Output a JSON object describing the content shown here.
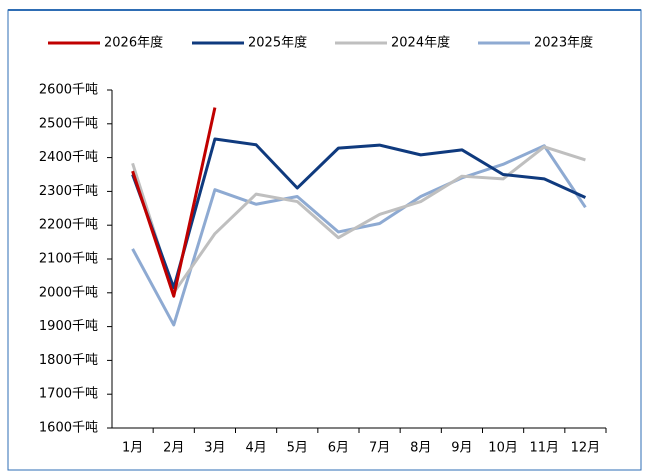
{
  "chart_data": {
    "type": "line",
    "categories": [
      "1月",
      "2月",
      "3月",
      "4月",
      "5月",
      "6月",
      "7月",
      "8月",
      "9月",
      "10月",
      "11月",
      "12月"
    ],
    "series": [
      {
        "name": "2026年度",
        "color": "#c00000",
        "values": [
          2360,
          1990,
          2548,
          null,
          null,
          null,
          null,
          null,
          null,
          null,
          null,
          null
        ]
      },
      {
        "name": "2025年度",
        "color": "#0f3a7e",
        "values": [
          2350,
          2015,
          2455,
          2438,
          2310,
          2428,
          2437,
          2408,
          2423,
          2350,
          2337,
          2282
        ]
      },
      {
        "name": "2024年度",
        "color": "#bfbfbf",
        "values": [
          2383,
          2000,
          2175,
          2292,
          2270,
          2163,
          2232,
          2270,
          2345,
          2337,
          2432,
          2393
        ]
      },
      {
        "name": "2023年度",
        "color": "#8eaad2",
        "values": [
          2130,
          1905,
          2305,
          2262,
          2285,
          2180,
          2205,
          2285,
          2340,
          2380,
          2435,
          2253
        ]
      }
    ],
    "ylim": [
      1600,
      2600
    ],
    "yticks": [
      {
        "value": 1600,
        "label": "1600千吨"
      },
      {
        "value": 1700,
        "label": "1700千吨"
      },
      {
        "value": 1800,
        "label": "1800千吨"
      },
      {
        "value": 1900,
        "label": "1900千吨"
      },
      {
        "value": 2000,
        "label": "2000千吨"
      },
      {
        "value": 2100,
        "label": "2100千吨"
      },
      {
        "value": 2200,
        "label": "2200千吨"
      },
      {
        "value": 2300,
        "label": "2300千吨"
      },
      {
        "value": 2400,
        "label": "2400千吨"
      },
      {
        "value": 2500,
        "label": "2500千吨"
      },
      {
        "value": 2600,
        "label": "2600千吨"
      }
    ],
    "grid": false
  }
}
